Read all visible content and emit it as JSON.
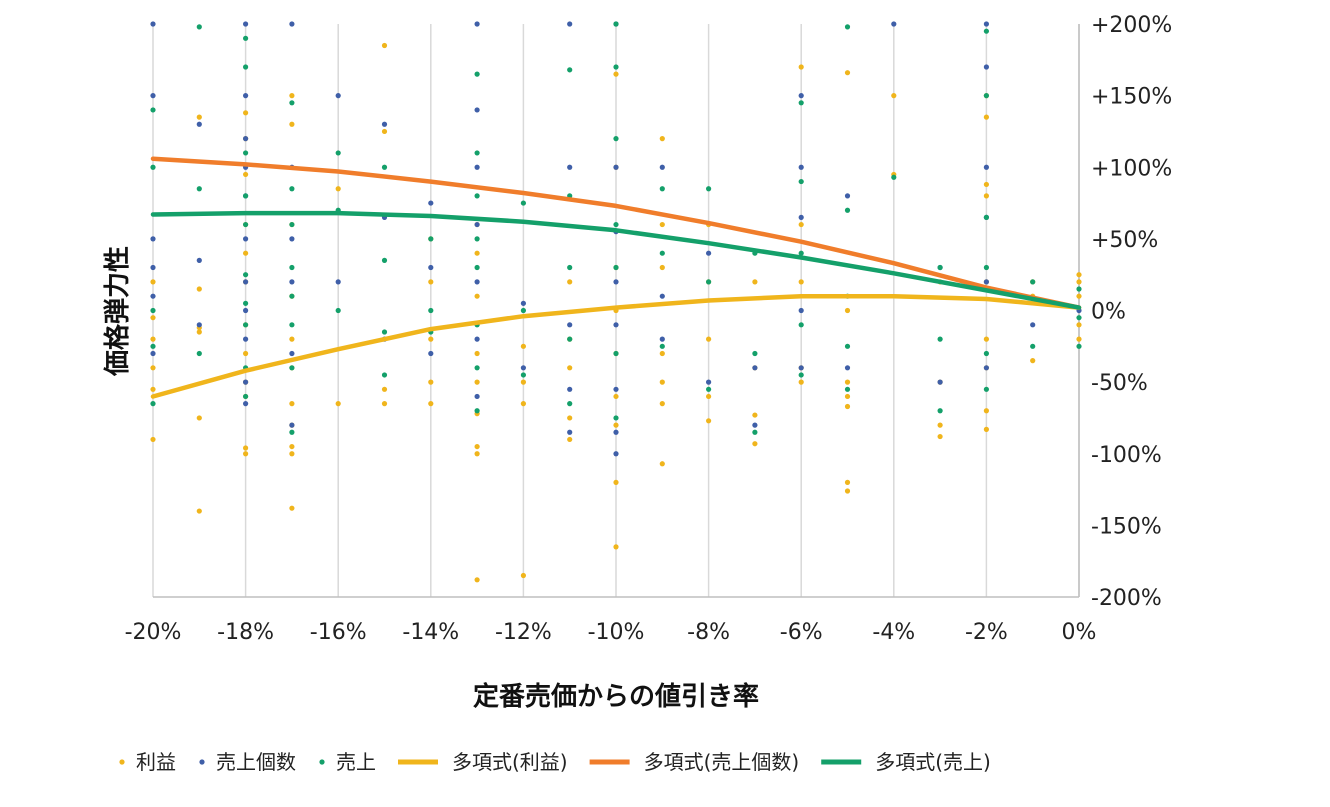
{
  "chart_data": {
    "type": "scatter",
    "title": "",
    "xlabel": "定番売価からの値引き率",
    "ylabel": "価格弾力性",
    "xlim": [
      -20,
      0
    ],
    "ylim": [
      -200,
      200
    ],
    "x_ticks": [
      -20,
      -18,
      -16,
      -14,
      -12,
      -10,
      -8,
      -6,
      -4,
      -2,
      0
    ],
    "x_tick_labels": [
      "-20%",
      "-18%",
      "-16%",
      "-14%",
      "-12%",
      "-10%",
      "-8%",
      "-6%",
      "-4%",
      "-2%",
      "0%"
    ],
    "y_ticks": [
      200,
      150,
      100,
      50,
      0,
      -50,
      -100,
      -150,
      -200
    ],
    "y_tick_labels": [
      "+200%",
      "+150%",
      "+100%",
      "+50%",
      "0%",
      "-50%",
      "-100%",
      "-150%",
      "-200%"
    ],
    "y_axis_side": "right",
    "grid": "vertical",
    "legend_position": "bottom",
    "series": [
      {
        "name": "利益",
        "kind": "scatter",
        "color": "#F0B51C",
        "points": [
          [
            -20,
            -90
          ],
          [
            -20,
            -55
          ],
          [
            -20,
            -40
          ],
          [
            -20,
            -20
          ],
          [
            -20,
            20
          ],
          [
            -20,
            -5
          ],
          [
            -19,
            -140
          ],
          [
            -19,
            -75
          ],
          [
            -19,
            -15
          ],
          [
            -19,
            15
          ],
          [
            -19,
            135
          ],
          [
            -19,
            -12
          ],
          [
            -18,
            -100
          ],
          [
            -18,
            -96
          ],
          [
            -18,
            -60
          ],
          [
            -18,
            -30
          ],
          [
            -18,
            -10
          ],
          [
            -18,
            20
          ],
          [
            -18,
            60
          ],
          [
            -18,
            95
          ],
          [
            -18,
            120
          ],
          [
            -18,
            138
          ],
          [
            -18,
            -50
          ],
          [
            -18,
            40
          ],
          [
            -17,
            -138
          ],
          [
            -17,
            -100
          ],
          [
            -17,
            -95
          ],
          [
            -17,
            -80
          ],
          [
            -17,
            -40
          ],
          [
            -17,
            -20
          ],
          [
            -17,
            10
          ],
          [
            -17,
            60
          ],
          [
            -17,
            130
          ],
          [
            -17,
            150
          ],
          [
            -17,
            -65
          ],
          [
            -16,
            -65
          ],
          [
            -16,
            85
          ],
          [
            -15,
            -65
          ],
          [
            -15,
            -55
          ],
          [
            -15,
            125
          ],
          [
            -15,
            185
          ],
          [
            -14,
            -65
          ],
          [
            -14,
            -50
          ],
          [
            -14,
            -20
          ],
          [
            -14,
            20
          ],
          [
            -14,
            50
          ],
          [
            -13,
            -188
          ],
          [
            -13,
            -100
          ],
          [
            -13,
            -95
          ],
          [
            -13,
            -72
          ],
          [
            -13,
            -50
          ],
          [
            -13,
            -30
          ],
          [
            -13,
            10
          ],
          [
            -13,
            40
          ],
          [
            -13,
            60
          ],
          [
            -12,
            -185
          ],
          [
            -12,
            -65
          ],
          [
            -12,
            -50
          ],
          [
            -12,
            -25
          ],
          [
            -11,
            -90
          ],
          [
            -11,
            -75
          ],
          [
            -11,
            -40
          ],
          [
            -11,
            20
          ],
          [
            -11,
            -20
          ],
          [
            -10,
            -165
          ],
          [
            -10,
            -120
          ],
          [
            -10,
            -80
          ],
          [
            -10,
            -60
          ],
          [
            -10,
            -30
          ],
          [
            -10,
            0
          ],
          [
            -10,
            30
          ],
          [
            -10,
            100
          ],
          [
            -10,
            165
          ],
          [
            -9,
            -107
          ],
          [
            -9,
            -65
          ],
          [
            -9,
            -50
          ],
          [
            -9,
            -30
          ],
          [
            -9,
            30
          ],
          [
            -9,
            60
          ],
          [
            -9,
            120
          ],
          [
            -8,
            -77
          ],
          [
            -8,
            -60
          ],
          [
            -8,
            -20
          ],
          [
            -8,
            20
          ],
          [
            -8,
            60
          ],
          [
            -7,
            -93
          ],
          [
            -7,
            -73
          ],
          [
            -7,
            -40
          ],
          [
            -7,
            20
          ],
          [
            -6,
            -50
          ],
          [
            -6,
            -40
          ],
          [
            -6,
            20
          ],
          [
            -6,
            60
          ],
          [
            -6,
            170
          ],
          [
            -5,
            -126
          ],
          [
            -5,
            -120
          ],
          [
            -5,
            -67
          ],
          [
            -5,
            -60
          ],
          [
            -5,
            -50
          ],
          [
            -5,
            0
          ],
          [
            -5,
            166
          ],
          [
            -4,
            150
          ],
          [
            -4,
            95
          ],
          [
            -3,
            -88
          ],
          [
            -3,
            -80
          ],
          [
            -3,
            -50
          ],
          [
            -3,
            20
          ],
          [
            -2,
            -83
          ],
          [
            -2,
            -70
          ],
          [
            -2,
            -40
          ],
          [
            -2,
            -20
          ],
          [
            -2,
            20
          ],
          [
            -2,
            80
          ],
          [
            -2,
            88
          ],
          [
            -2,
            135
          ],
          [
            -2,
            150
          ],
          [
            -1,
            -35
          ],
          [
            -1,
            10
          ],
          [
            -1,
            20
          ],
          [
            0,
            -20
          ],
          [
            0,
            -10
          ],
          [
            0,
            10
          ],
          [
            0,
            20
          ],
          [
            0,
            25
          ]
        ]
      },
      {
        "name": "売上個数",
        "kind": "scatter",
        "color": "#3F5FA8",
        "points": [
          [
            -20,
            200
          ],
          [
            -20,
            150
          ],
          [
            -20,
            50
          ],
          [
            -20,
            30
          ],
          [
            -20,
            10
          ],
          [
            -20,
            -30
          ],
          [
            -19,
            130
          ],
          [
            -19,
            35
          ],
          [
            -19,
            -10
          ],
          [
            -18,
            200
          ],
          [
            -18,
            150
          ],
          [
            -18,
            100
          ],
          [
            -18,
            50
          ],
          [
            -18,
            20
          ],
          [
            -18,
            0
          ],
          [
            -18,
            -20
          ],
          [
            -18,
            -50
          ],
          [
            -18,
            -65
          ],
          [
            -18,
            80
          ],
          [
            -18,
            120
          ],
          [
            -17,
            200
          ],
          [
            -17,
            100
          ],
          [
            -17,
            50
          ],
          [
            -17,
            20
          ],
          [
            -17,
            -30
          ],
          [
            -17,
            -80
          ],
          [
            -16,
            150
          ],
          [
            -16,
            20
          ],
          [
            -15,
            130
          ],
          [
            -15,
            65
          ],
          [
            -15,
            -20
          ],
          [
            -14,
            75
          ],
          [
            -14,
            30
          ],
          [
            -14,
            -30
          ],
          [
            -13,
            200
          ],
          [
            -13,
            140
          ],
          [
            -13,
            100
          ],
          [
            -13,
            60
          ],
          [
            -13,
            20
          ],
          [
            -13,
            -20
          ],
          [
            -13,
            -60
          ],
          [
            -12,
            5
          ],
          [
            -12,
            -40
          ],
          [
            -11,
            200
          ],
          [
            -11,
            100
          ],
          [
            -11,
            -10
          ],
          [
            -11,
            -55
          ],
          [
            -11,
            -85
          ],
          [
            -10,
            200
          ],
          [
            -10,
            100
          ],
          [
            -10,
            55
          ],
          [
            -10,
            20
          ],
          [
            -10,
            -10
          ],
          [
            -10,
            -55
          ],
          [
            -10,
            -85
          ],
          [
            -10,
            -100
          ],
          [
            -9,
            100
          ],
          [
            -9,
            10
          ],
          [
            -9,
            -20
          ],
          [
            -8,
            40
          ],
          [
            -8,
            -50
          ],
          [
            -7,
            -40
          ],
          [
            -7,
            -80
          ],
          [
            -6,
            150
          ],
          [
            -6,
            100
          ],
          [
            -6,
            65
          ],
          [
            -6,
            0
          ],
          [
            -6,
            -40
          ],
          [
            -5,
            80
          ],
          [
            -5,
            -40
          ],
          [
            -4,
            200
          ],
          [
            -3,
            30
          ],
          [
            -3,
            -50
          ],
          [
            -2,
            200
          ],
          [
            -2,
            170
          ],
          [
            -2,
            100
          ],
          [
            -2,
            65
          ],
          [
            -2,
            20
          ],
          [
            -2,
            -40
          ],
          [
            -1,
            -10
          ],
          [
            0,
            0
          ]
        ]
      },
      {
        "name": "売上",
        "kind": "scatter",
        "color": "#14A06A",
        "points": [
          [
            -20,
            140
          ],
          [
            -20,
            100
          ],
          [
            -20,
            0
          ],
          [
            -20,
            -25
          ],
          [
            -20,
            -65
          ],
          [
            -19,
            198
          ],
          [
            -19,
            85
          ],
          [
            -19,
            -30
          ],
          [
            -18,
            190
          ],
          [
            -18,
            170
          ],
          [
            -18,
            110
          ],
          [
            -18,
            80
          ],
          [
            -18,
            60
          ],
          [
            -18,
            25
          ],
          [
            -18,
            5
          ],
          [
            -18,
            -10
          ],
          [
            -18,
            -40
          ],
          [
            -18,
            -60
          ],
          [
            -17,
            145
          ],
          [
            -17,
            85
          ],
          [
            -17,
            60
          ],
          [
            -17,
            30
          ],
          [
            -17,
            10
          ],
          [
            -17,
            -10
          ],
          [
            -17,
            -40
          ],
          [
            -17,
            -85
          ],
          [
            -16,
            110
          ],
          [
            -16,
            70
          ],
          [
            -16,
            0
          ],
          [
            -15,
            100
          ],
          [
            -15,
            35
          ],
          [
            -15,
            -15
          ],
          [
            -15,
            -45
          ],
          [
            -14,
            50
          ],
          [
            -14,
            0
          ],
          [
            -14,
            -15
          ],
          [
            -13,
            165
          ],
          [
            -13,
            110
          ],
          [
            -13,
            80
          ],
          [
            -13,
            50
          ],
          [
            -13,
            30
          ],
          [
            -13,
            -10
          ],
          [
            -13,
            -40
          ],
          [
            -13,
            -70
          ],
          [
            -12,
            75
          ],
          [
            -12,
            0
          ],
          [
            -12,
            -45
          ],
          [
            -11,
            168
          ],
          [
            -11,
            80
          ],
          [
            -11,
            30
          ],
          [
            -11,
            -20
          ],
          [
            -11,
            -65
          ],
          [
            -10,
            200
          ],
          [
            -10,
            170
          ],
          [
            -10,
            120
          ],
          [
            -10,
            60
          ],
          [
            -10,
            30
          ],
          [
            -10,
            -30
          ],
          [
            -10,
            -75
          ],
          [
            -9,
            85
          ],
          [
            -9,
            40
          ],
          [
            -9,
            -25
          ],
          [
            -8,
            85
          ],
          [
            -8,
            20
          ],
          [
            -8,
            -55
          ],
          [
            -7,
            40
          ],
          [
            -7,
            -30
          ],
          [
            -7,
            -85
          ],
          [
            -6,
            145
          ],
          [
            -6,
            90
          ],
          [
            -6,
            40
          ],
          [
            -6,
            -10
          ],
          [
            -6,
            -45
          ],
          [
            -5,
            198
          ],
          [
            -5,
            70
          ],
          [
            -5,
            10
          ],
          [
            -5,
            -25
          ],
          [
            -5,
            -55
          ],
          [
            -4,
            93
          ],
          [
            -3,
            30
          ],
          [
            -3,
            -20
          ],
          [
            -3,
            -70
          ],
          [
            -2,
            195
          ],
          [
            -2,
            150
          ],
          [
            -2,
            65
          ],
          [
            -2,
            30
          ],
          [
            -2,
            -30
          ],
          [
            -2,
            -55
          ],
          [
            -1,
            20
          ],
          [
            -1,
            -25
          ],
          [
            0,
            -5
          ],
          [
            0,
            15
          ],
          [
            0,
            -25
          ]
        ]
      },
      {
        "name": "多項式(利益)",
        "kind": "trend",
        "color": "#F0B51C",
        "x": [
          -20,
          -18,
          -16,
          -14,
          -12,
          -10,
          -8,
          -6,
          -4,
          -2,
          0
        ],
        "values": [
          -60,
          -42,
          -27,
          -13,
          -4,
          2,
          7,
          10,
          10,
          8,
          2
        ]
      },
      {
        "name": "多項式(売上個数)",
        "kind": "trend",
        "color": "#F07D2B",
        "x": [
          -20,
          -18,
          -16,
          -14,
          -12,
          -10,
          -8,
          -6,
          -4,
          -2,
          0
        ],
        "values": [
          106,
          102,
          97,
          90,
          82,
          73,
          61,
          48,
          33,
          16,
          2
        ]
      },
      {
        "name": "多項式(売上)",
        "kind": "trend",
        "color": "#14A06A",
        "x": [
          -20,
          -18,
          -16,
          -14,
          -12,
          -10,
          -8,
          -6,
          -4,
          -2,
          0
        ],
        "values": [
          67,
          68,
          68,
          66,
          62,
          56,
          47,
          37,
          26,
          14,
          2
        ]
      }
    ]
  }
}
